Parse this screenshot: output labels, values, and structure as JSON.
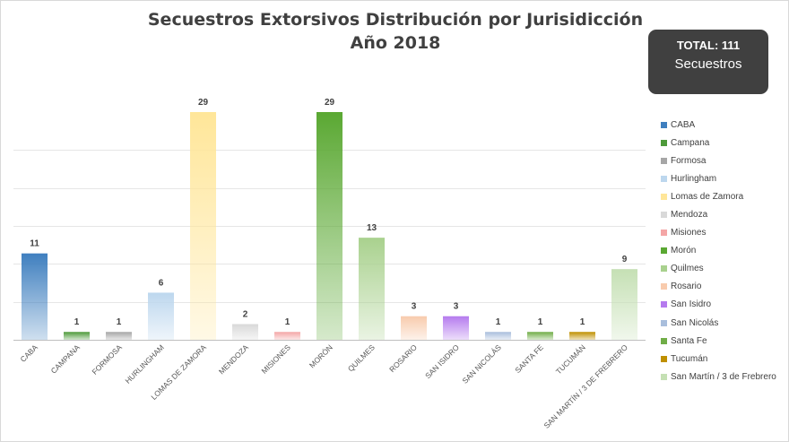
{
  "title": {
    "line1": "Secuestros Extorsivos Distribución por Jurisidicción",
    "line2": "Año 2018"
  },
  "total": {
    "label": "TOTAL: 111",
    "sublabel": "Secuestros"
  },
  "chart_data": {
    "type": "bar",
    "title": "Secuestros Extorsivos Distribución por Jurisidicción Año 2018",
    "xlabel": "",
    "ylabel": "",
    "ylim": [
      0,
      29
    ],
    "grid": true,
    "legend_position": "right",
    "categories": [
      "CABA",
      "CAMPANA",
      "FORMOSA",
      "HURLINGHAM",
      "LOMAS DE ZAMORA",
      "MENDOZA",
      "MISIONES",
      "MORÓN",
      "QUILMES",
      "ROSARIO",
      "SAN ISIDRO",
      "SAN NICOLÁS",
      "SANTA FE",
      "TUCUMÁN",
      "SAN MARTÍN / 3 DE FREBRERO"
    ],
    "legend": [
      "CABA",
      "Campana",
      "Formosa",
      "Hurlingham",
      "Lomas de Zamora",
      "Mendoza",
      "Misiones",
      "Morón",
      "Quilmes",
      "Rosario",
      "San Isidro",
      "San Nicolás",
      "Santa Fe",
      "Tucumán",
      "San Martín / 3 de Frebrero"
    ],
    "values": [
      11,
      1,
      1,
      6,
      29,
      2,
      1,
      29,
      13,
      3,
      3,
      1,
      1,
      1,
      9
    ],
    "colors": [
      "#3f7fbf",
      "#4e9a3a",
      "#a6a6a6",
      "#bdd7ee",
      "#ffe699",
      "#d9d9d9",
      "#f4a6a6",
      "#5aa832",
      "#a9d18e",
      "#f8cbad",
      "#b57bee",
      "#a9bedc",
      "#70ad47",
      "#bf9000",
      "#c5e0b4"
    ]
  }
}
